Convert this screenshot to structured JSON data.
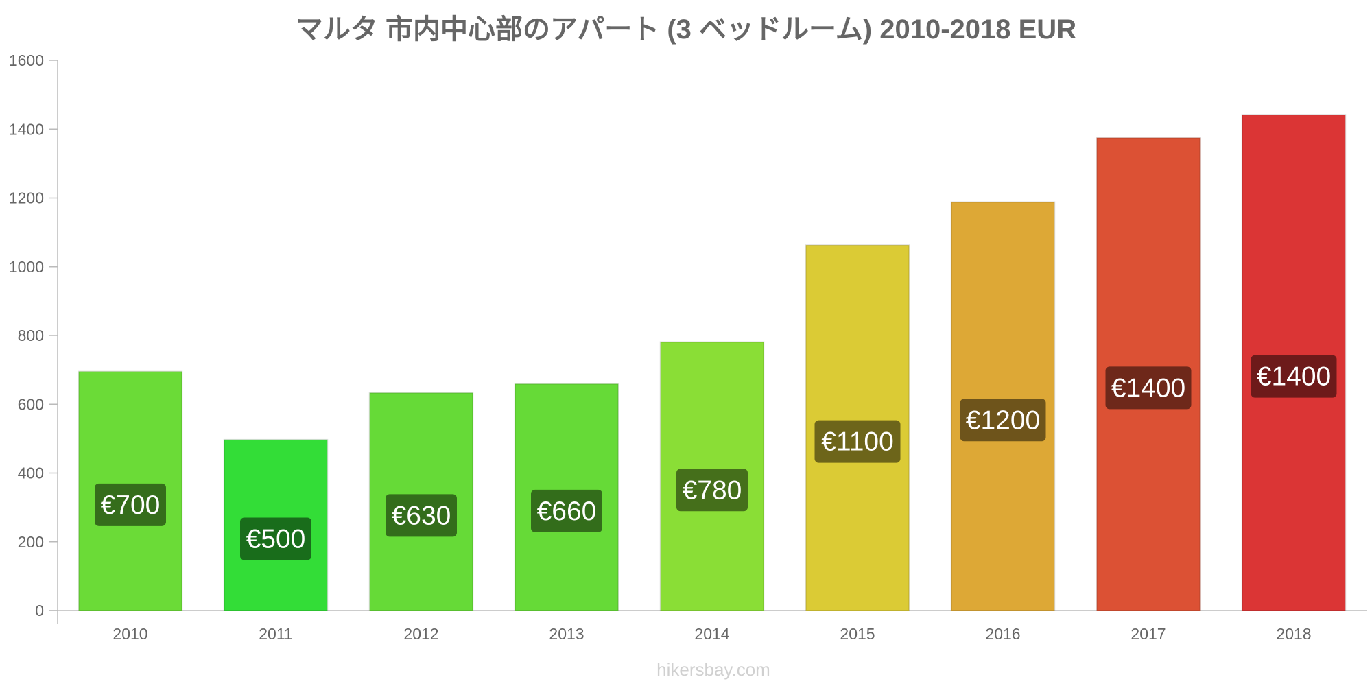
{
  "chart_data": {
    "type": "bar",
    "title": "マルタ 市内中心部のアパート (3 ベッドルーム) 2010-2018 EUR",
    "xlabel": "",
    "ylabel": "",
    "categories": [
      "2010",
      "2011",
      "2012",
      "2013",
      "2014",
      "2015",
      "2016",
      "2017",
      "2018"
    ],
    "values": [
      695,
      497,
      633,
      659,
      781,
      1063,
      1188,
      1375,
      1442
    ],
    "data_labels": [
      "€700",
      "€500",
      "€630",
      "€660",
      "€780",
      "€1100",
      "€1200",
      "€1400",
      "€1400"
    ],
    "bar_colors": [
      "#6bdb37",
      "#33dd37",
      "#66da37",
      "#66da37",
      "#8ade36",
      "#dbcb35",
      "#dda836",
      "#dc5134",
      "#db3535"
    ],
    "label_colors": [
      "#356d1b",
      "#196d1b",
      "#336d1b",
      "#336d1b",
      "#456f1b",
      "#6d651a",
      "#6e541b",
      "#6e281a",
      "#6d1a1a"
    ],
    "ylim": [
      0,
      1600
    ],
    "yticks": [
      0,
      200,
      400,
      600,
      800,
      1000,
      1200,
      1400,
      1600
    ],
    "grid": false,
    "legend": "none"
  },
  "watermark": "hikersbay.com"
}
